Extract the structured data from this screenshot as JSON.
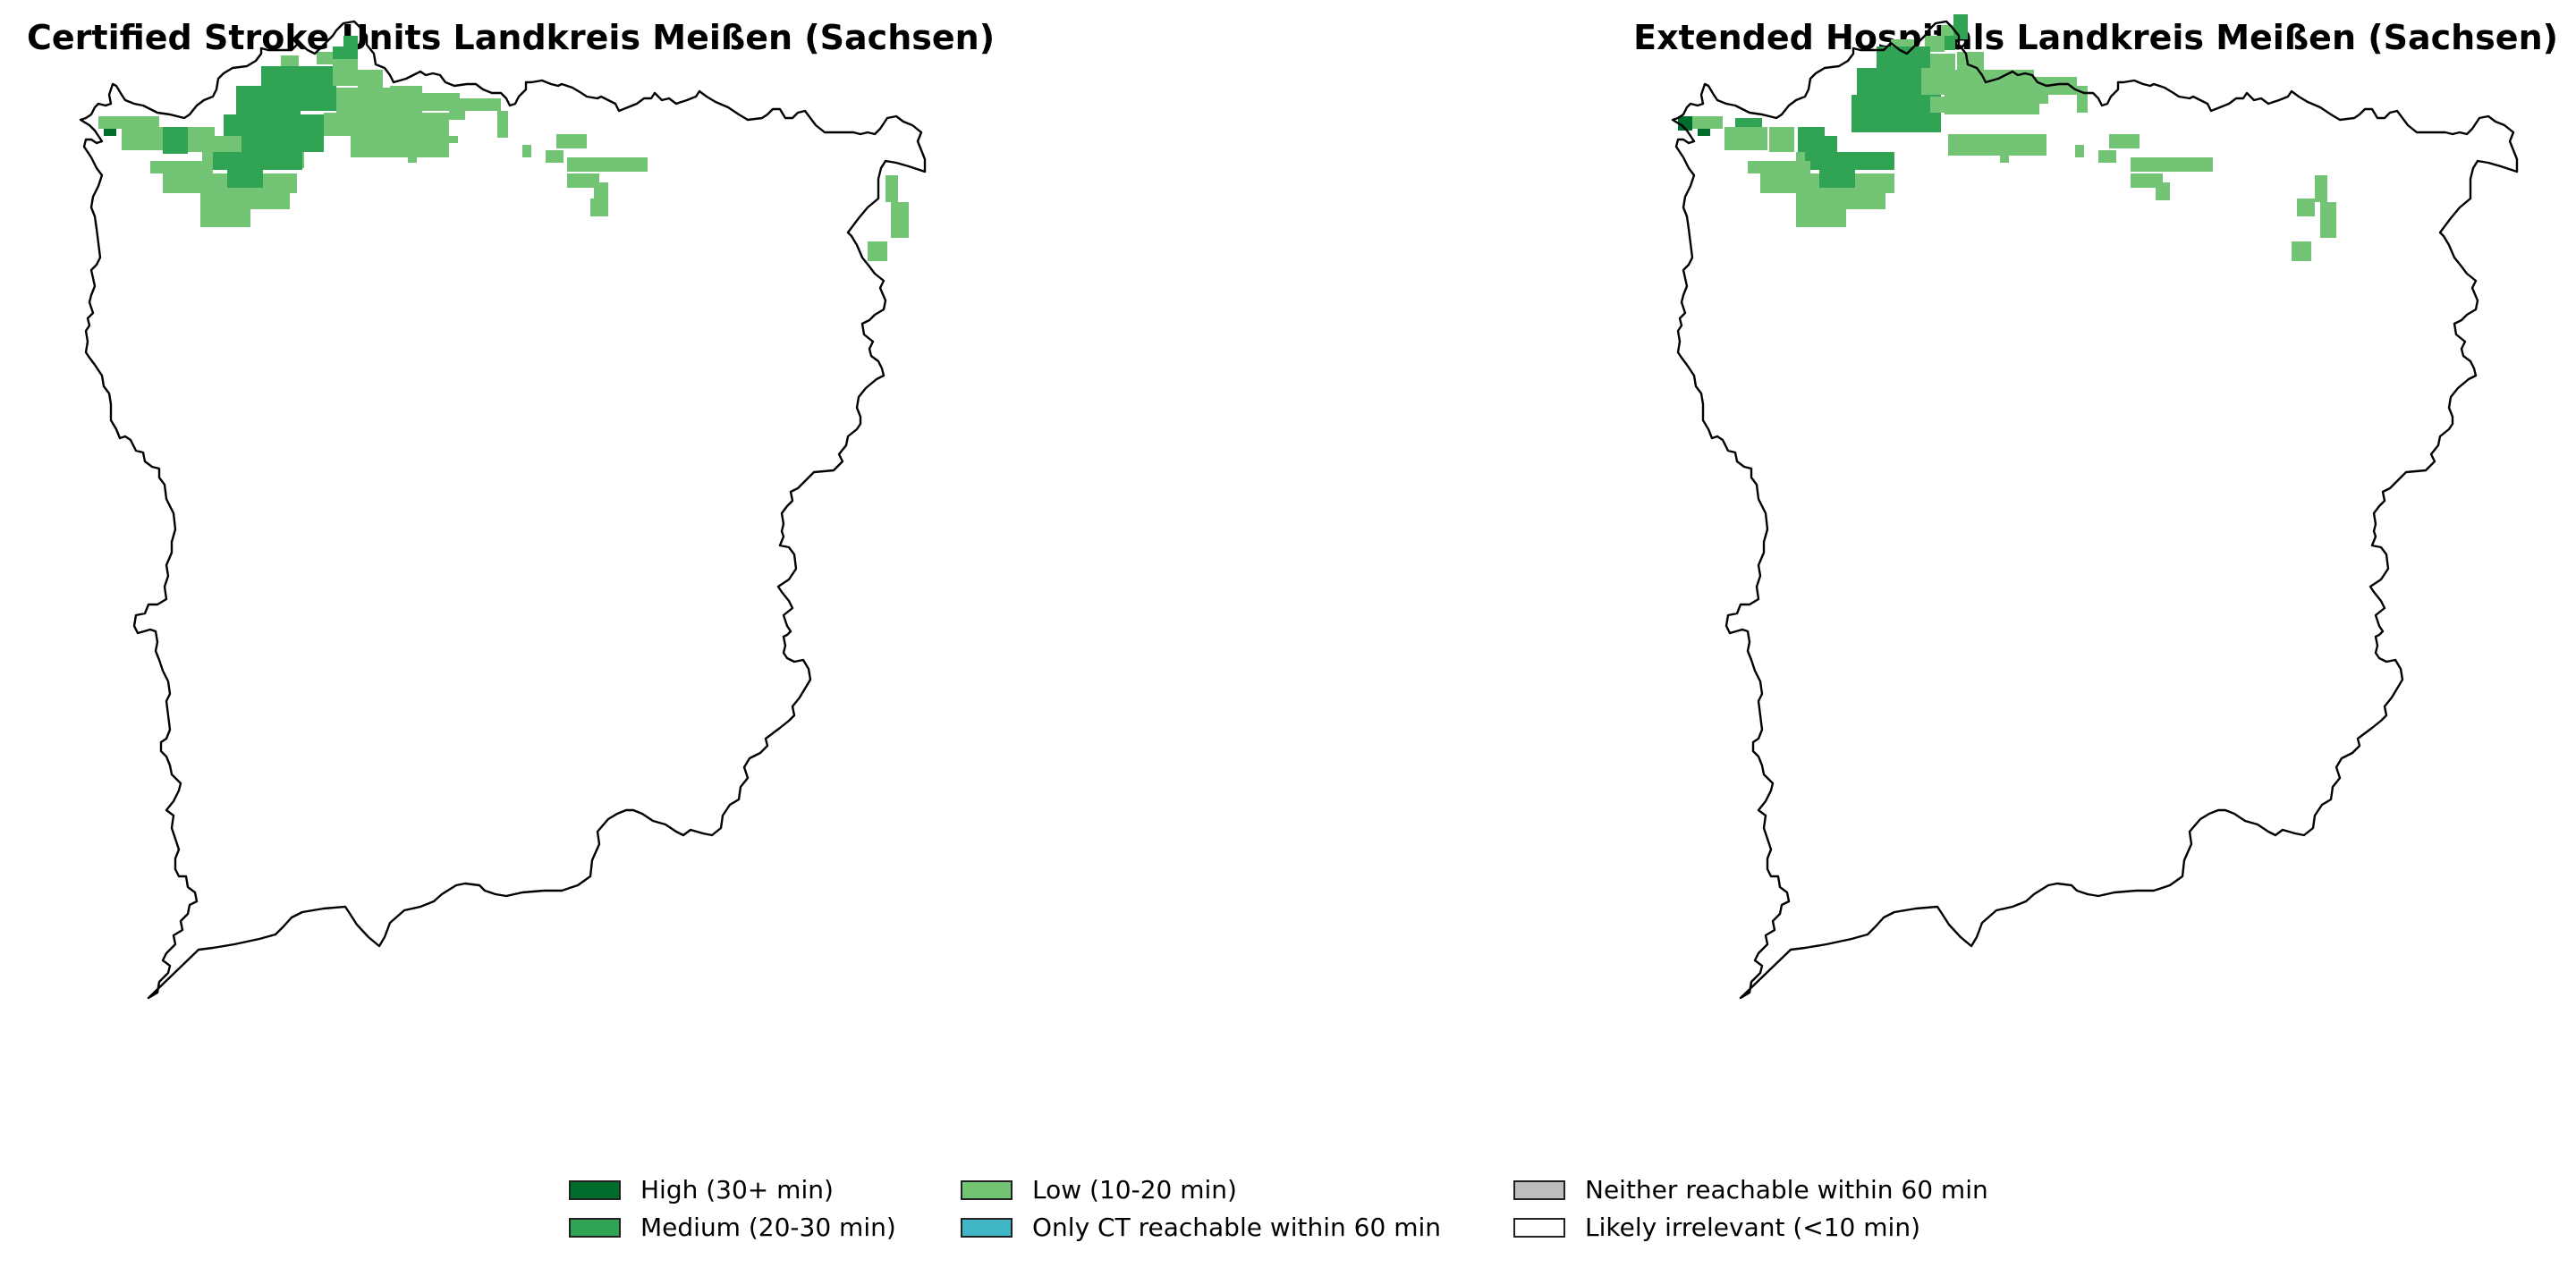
{
  "maps": {
    "left_title": "Certified Stroke Units Landkreis Meißen (Sachsen)",
    "right_title": "Extended Hospitals Landkreis Meißen (Sachsen)"
  },
  "legend": {
    "items": [
      {
        "label": "High (30+ min)",
        "color": "#006d2c"
      },
      {
        "label": "Medium (20-30 min)",
        "color": "#31a354"
      },
      {
        "label": "Low (10-20 min)",
        "color": "#74c476"
      },
      {
        "label": "Only CT reachable within 60 min",
        "color": "#41b6c4"
      },
      {
        "label": "Neither reachable within 60 min",
        "color": "#bdbdbd"
      },
      {
        "label": "Likely irrelevant (<10 min)",
        "color": "#ffffff"
      }
    ]
  },
  "colors": {
    "high": "#006d2c",
    "medium": "#31a354",
    "low": "#74c476",
    "boundary": "#000000"
  }
}
